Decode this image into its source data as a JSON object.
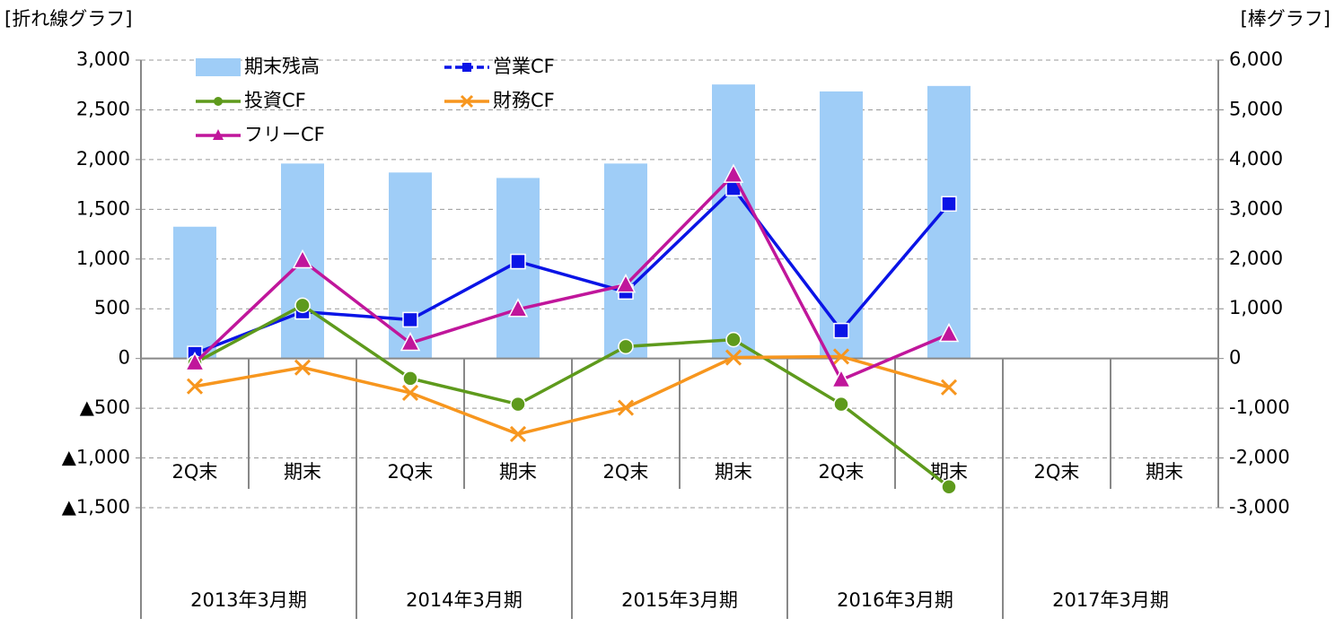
{
  "chart_data": {
    "type": "combo",
    "y_label": "[折れ線グラフ]",
    "y2_label": "[棒グラフ]",
    "categories": [
      "2Q末",
      "期末",
      "2Q末",
      "期末",
      "2Q末",
      "期末",
      "2Q末",
      "期末",
      "2Q末",
      "期末"
    ],
    "groups": [
      "2013年3月期",
      "2014年3月期",
      "2015年3月期",
      "2016年3月期",
      "2017年3月期"
    ],
    "ylim": [
      -1500,
      3000
    ],
    "yticks": [
      {
        "value": 3000,
        "label": "3,000"
      },
      {
        "value": 2500,
        "label": "2,500"
      },
      {
        "value": 2000,
        "label": "2,000"
      },
      {
        "value": 1500,
        "label": "1,500"
      },
      {
        "value": 1000,
        "label": "1,000"
      },
      500,
      0,
      {
        "value": -500,
        "label": "▲500"
      },
      {
        "value": -1000,
        "label": "▲1,000"
      },
      {
        "value": -1500,
        "label": "▲1,500"
      }
    ],
    "y2lim": [
      -3000,
      6000
    ],
    "y2ticks": [
      {
        "value": 6000,
        "label": "6,000"
      },
      {
        "value": 5000,
        "label": "5,000"
      },
      {
        "value": 4000,
        "label": "4,000"
      },
      {
        "value": 3000,
        "label": "3,000"
      },
      {
        "value": 2000,
        "label": "2,000"
      },
      {
        "value": 1000,
        "label": "1,000"
      },
      0,
      {
        "value": -1000,
        "label": "-1,000"
      },
      {
        "value": -2000,
        "label": "-2,000"
      },
      {
        "value": -3000,
        "label": "-3,000"
      }
    ],
    "grid": true,
    "series": [
      {
        "name": "期末残高",
        "kind": "bar",
        "axis": "y2",
        "color": "#9fcdf7",
        "values": [
          2650,
          3920,
          3740,
          3630,
          3920,
          5510,
          5370,
          5480,
          null,
          null
        ]
      },
      {
        "name": "営業CF",
        "kind": "line",
        "marker": "square",
        "color": "#0a14e6",
        "values": [
          50,
          470,
          390,
          975,
          670,
          1710,
          280,
          1555,
          null,
          null
        ]
      },
      {
        "name": "投資CF",
        "kind": "line",
        "marker": "circle",
        "color": "#5e9a1c",
        "values": [
          -45,
          535,
          -200,
          -460,
          120,
          190,
          -460,
          -1290,
          null,
          null
        ]
      },
      {
        "name": "財務CF",
        "kind": "line",
        "marker": "x",
        "color": "#f7961e",
        "values": [
          -280,
          -90,
          -345,
          -760,
          -495,
          10,
          20,
          -290,
          null,
          null
        ]
      },
      {
        "name": "フリーCF",
        "kind": "line",
        "marker": "triangle",
        "color": "#c0169b",
        "values": [
          -45,
          985,
          155,
          495,
          740,
          1845,
          -215,
          245,
          null,
          null
        ]
      }
    ]
  }
}
